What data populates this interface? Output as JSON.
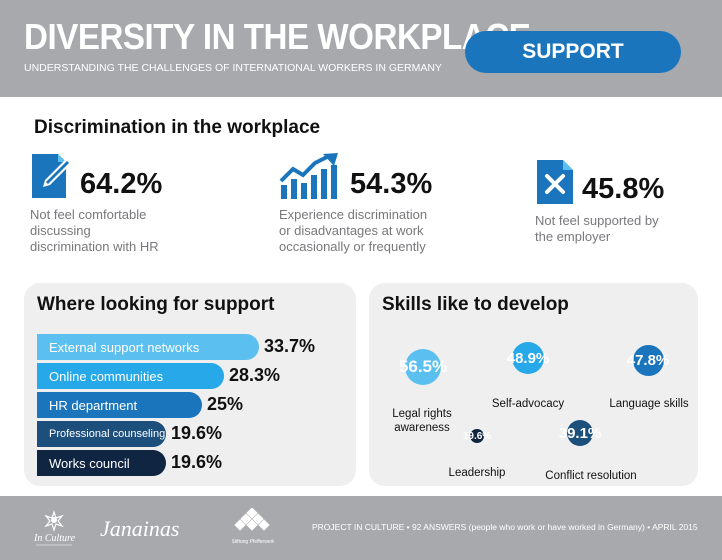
{
  "header": {
    "title": "DIVERSITY IN THE WORKPLACE",
    "subtitle": "UNDERSTANDING THE CHALLENGES OF INTERNATIONAL WORKERS IN GERMANY",
    "pill_label": "SUPPORT"
  },
  "discrimination": {
    "title": "Discrimination in the workplace",
    "stats": [
      {
        "icon": "document-pen-icon",
        "value": "64.2%",
        "line1": "Not feel comfortable",
        "line2": "discussing",
        "line3": "discrimination with HR"
      },
      {
        "icon": "rising-chart-icon",
        "value": "54.3%",
        "line1": "Experience discrimination",
        "line2": "or disadvantages at work",
        "line3": "occasionally or frequently"
      },
      {
        "icon": "document-x-icon",
        "value": "45.8%",
        "line1": "Not feel supported by",
        "line2": "the employer",
        "line3": ""
      }
    ]
  },
  "support": {
    "title": "Where looking for support",
    "items": [
      {
        "label": "External support networks",
        "value": "33.7%",
        "percent": 33.7,
        "color": "#5bc0f0"
      },
      {
        "label": "Online communities",
        "value": "28.3%",
        "percent": 28.3,
        "color": "#27a8e8"
      },
      {
        "label": "HR department",
        "value": "25%",
        "percent": 25,
        "color": "#1b75bc"
      },
      {
        "label": "Professional counseling",
        "value": "19.6%",
        "percent": 19.6,
        "color": "#1c4f7c"
      },
      {
        "label": "Works council",
        "value": "19.6%",
        "percent": 19.6,
        "color": "#0f2542"
      }
    ]
  },
  "skills": {
    "title": "Skills like to develop",
    "items": [
      {
        "value": "56.5%",
        "percent": 56.5,
        "line1": "Legal rights",
        "line2": "awareness",
        "color": "#5bc0f0"
      },
      {
        "value": "48.9%",
        "percent": 48.9,
        "line1": "Self-advocacy",
        "line2": "",
        "color": "#27a8e8"
      },
      {
        "value": "47.8%",
        "percent": 47.8,
        "line1": "Language skills",
        "line2": "",
        "color": "#1b75bc"
      },
      {
        "value": "19.6%",
        "percent": 19.6,
        "line1": "Leadership",
        "line2": "",
        "color": "#0f2542"
      },
      {
        "value": "39.1%",
        "percent": 39.1,
        "line1": "Conflict resolution",
        "line2": "",
        "color": "#1c4f7c"
      }
    ]
  },
  "footer": {
    "logos": [
      "In Culture",
      "Janainas",
      "Stiftung Pfefferwerk"
    ],
    "source": "PROJECT IN CULTURE • 92 ANSWERS (people who work or have worked in Germany) • APRIL 2015"
  }
}
